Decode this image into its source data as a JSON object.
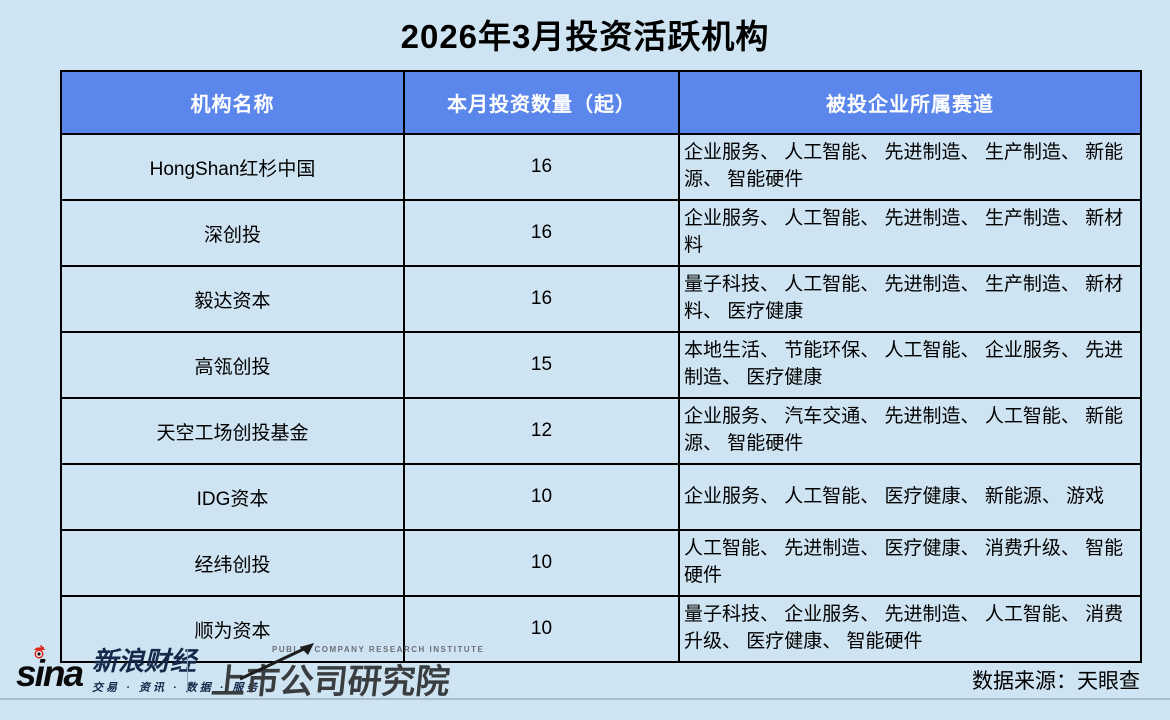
{
  "title": "2026年3月投资活跃机构",
  "chart_data": {
    "type": "table",
    "title": "2026年3月投资活跃机构",
    "columns": [
      "机构名称",
      "本月投资数量（起）",
      "被投企业所属赛道"
    ],
    "rows": [
      {
        "name": "HongShan红杉中国",
        "count": "16",
        "tracks": "企业服务、 人工智能、 先进制造、 生产制造、 新能源、 智能硬件"
      },
      {
        "name": "深创投",
        "count": "16",
        "tracks": "企业服务、 人工智能、 先进制造、 生产制造、 新材料"
      },
      {
        "name": "毅达资本",
        "count": "16",
        "tracks": "量子科技、 人工智能、 先进制造、 生产制造、 新材料、 医疗健康"
      },
      {
        "name": "高瓴创投",
        "count": "15",
        "tracks": "本地生活、 节能环保、 人工智能、 企业服务、 先进制造、 医疗健康"
      },
      {
        "name": "天空工场创投基金",
        "count": "12",
        "tracks": "企业服务、 汽车交通、 先进制造、 人工智能、 新能源、 智能硬件"
      },
      {
        "name": "IDG资本",
        "count": "10",
        "tracks": "企业服务、 人工智能、 医疗健康、 新能源、 游戏"
      },
      {
        "name": "经纬创投",
        "count": "10",
        "tracks": "人工智能、 先进制造、 医疗健康、 消费升级、 智能硬件"
      },
      {
        "name": "顺为资本",
        "count": "10",
        "tracks": "量子科技、 企业服务、 先进制造、 人工智能、 消费升级、 医疗健康、 智能硬件"
      }
    ]
  },
  "footer": {
    "sina_word": "sina",
    "sina_brand": "新浪财经",
    "sina_tagline": "交易 · 资讯 · 数据 · 服务",
    "institute_en": "PUBLIC COMPANY RESEARCH INSTITUTE",
    "institute_cn": "上市公司研究院",
    "data_source": "数据来源：天眼查"
  },
  "colors": {
    "header_bg": "#5B87EC",
    "page_bg": "#CFE4F2",
    "border": "#000000",
    "sina_red": "#E2231A",
    "institute_gray": "#3A3D40"
  }
}
